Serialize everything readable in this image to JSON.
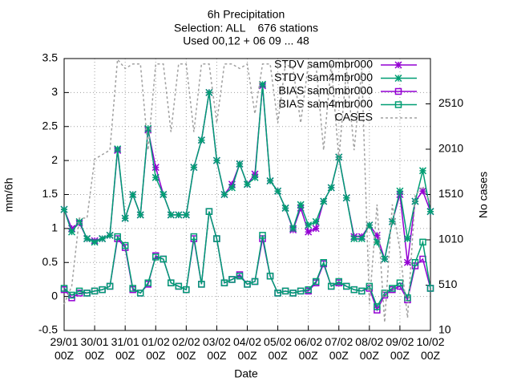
{
  "chart_data": {
    "type": "line",
    "title": "6h Precipitation",
    "subtitle": [
      "Selection: ALL    676 stations",
      "Used 00,12 + 06 09 ... 48"
    ],
    "xlabel": "Date",
    "ylabel": "mm/6h",
    "y2label": "No cases",
    "x": [
      0,
      0.25,
      0.5,
      0.75,
      1,
      1.25,
      1.5,
      1.75,
      2,
      2.25,
      2.5,
      2.75,
      3,
      3.25,
      3.5,
      3.75,
      4,
      4.25,
      4.5,
      4.75,
      5,
      5.25,
      5.5,
      5.75,
      6,
      6.25,
      6.5,
      6.75,
      7,
      7.25,
      7.5,
      7.75,
      8,
      8.25,
      8.5,
      8.75,
      9,
      9.25,
      9.5,
      9.75,
      10,
      10.25,
      10.5,
      10.75,
      11,
      11.25,
      11.5,
      11.75,
      12
    ],
    "xlim": [
      0,
      12
    ],
    "xticks": [
      {
        "value": 0,
        "label": "29/01\n00Z"
      },
      {
        "value": 1,
        "label": "30/01\n00Z"
      },
      {
        "value": 2,
        "label": "31/01\n00Z"
      },
      {
        "value": 3,
        "label": "01/02\n00Z"
      },
      {
        "value": 4,
        "label": "02/02\n00Z"
      },
      {
        "value": 5,
        "label": "03/02\n00Z"
      },
      {
        "value": 6,
        "label": "04/02\n00Z"
      },
      {
        "value": 7,
        "label": "05/02\n00Z"
      },
      {
        "value": 8,
        "label": "06/02\n00Z"
      },
      {
        "value": 9,
        "label": "07/02\n00Z"
      },
      {
        "value": 10,
        "label": "08/02\n00Z"
      },
      {
        "value": 11,
        "label": "09/02\n00Z"
      },
      {
        "value": 12,
        "label": "10/02\n00Z"
      }
    ],
    "ylim": [
      -0.5,
      3.5
    ],
    "yticks": [
      -0.5,
      0,
      0.5,
      1,
      1.5,
      2,
      2.5,
      3,
      3.5
    ],
    "y2lim": [
      10,
      3010
    ],
    "y2ticks": [
      10,
      510,
      1010,
      1510,
      2010,
      2510
    ],
    "grid": true,
    "legend": "top-right",
    "series": [
      {
        "name": "STDV sam0mbr000",
        "color": "#9400d3",
        "marker": "star",
        "values": [
          1.28,
          1.0,
          1.08,
          0.85,
          0.82,
          0.85,
          0.9,
          2.15,
          1.15,
          1.5,
          1.2,
          2.45,
          1.9,
          1.5,
          1.2,
          1.2,
          1.2,
          1.9,
          2.3,
          3.0,
          2.0,
          1.5,
          1.65,
          1.95,
          1.65,
          1.8,
          3.1,
          1.7,
          1.55,
          1.3,
          0.98,
          1.3,
          0.95,
          1.0,
          1.4,
          1.6,
          2.05,
          1.45,
          0.88,
          0.88,
          1.05,
          0.9,
          0.55,
          1.1,
          1.5,
          0.5,
          1.4,
          1.55,
          1.25
        ]
      },
      {
        "name": "STDV sam4mbr000",
        "color": "#009e73",
        "marker": "star",
        "values": [
          1.28,
          0.95,
          1.1,
          0.85,
          0.8,
          0.85,
          0.9,
          2.17,
          1.15,
          1.5,
          1.2,
          2.47,
          1.75,
          1.5,
          1.2,
          1.2,
          1.2,
          1.9,
          2.3,
          3.0,
          2.0,
          1.5,
          1.6,
          1.95,
          1.65,
          1.75,
          3.12,
          1.7,
          1.55,
          1.3,
          1.0,
          1.35,
          1.05,
          1.1,
          1.4,
          1.6,
          2.05,
          1.45,
          0.85,
          0.85,
          1.05,
          0.8,
          0.55,
          1.1,
          1.55,
          0.85,
          1.4,
          1.85,
          1.25
        ]
      },
      {
        "name": "BIAS sam0mbr000",
        "color": "#9400d3",
        "marker": "square",
        "values": [
          0.1,
          -0.02,
          0.05,
          0.05,
          0.08,
          0.1,
          0.15,
          0.85,
          0.72,
          0.1,
          0.05,
          0.18,
          0.6,
          0.55,
          0.2,
          0.15,
          0.1,
          0.85,
          0.18,
          1.25,
          0.85,
          0.2,
          0.25,
          0.32,
          0.18,
          0.22,
          0.85,
          0.3,
          0.05,
          0.08,
          0.05,
          0.08,
          0.08,
          0.2,
          0.48,
          0.15,
          0.2,
          0.15,
          0.1,
          0.08,
          0.12,
          -0.2,
          0.02,
          0.1,
          0.15,
          -0.05,
          0.45,
          0.55,
          0.12
        ]
      },
      {
        "name": "BIAS sam4mbr000",
        "color": "#009e73",
        "marker": "square",
        "values": [
          0.12,
          0.02,
          0.08,
          0.05,
          0.08,
          0.1,
          0.15,
          0.88,
          0.75,
          0.12,
          0.05,
          0.2,
          0.58,
          0.55,
          0.2,
          0.15,
          0.1,
          0.88,
          0.18,
          1.25,
          0.85,
          0.2,
          0.25,
          0.3,
          0.18,
          0.22,
          0.9,
          0.3,
          0.05,
          0.08,
          0.05,
          0.08,
          0.1,
          0.22,
          0.5,
          0.15,
          0.22,
          0.15,
          0.1,
          0.08,
          0.15,
          -0.15,
          0.05,
          0.12,
          0.2,
          -0.02,
          0.5,
          0.8,
          0.12
        ]
      },
      {
        "name": "CASES",
        "color": "#a0a0a0",
        "marker": null,
        "axis": "y2",
        "values": [
          300,
          500,
          1250,
          1250,
          1900,
          1950,
          2000,
          3000,
          2900,
          2950,
          2950,
          2000,
          2950,
          2950,
          2200,
          2950,
          2950,
          2200,
          2950,
          2950,
          2300,
          2950,
          2950,
          2900,
          2950,
          2400,
          2950,
          2950,
          2300,
          2950,
          2900,
          2300,
          2950,
          2950,
          2000,
          2950,
          1900,
          2900,
          2000,
          2900,
          300,
          1400,
          100,
          1400,
          900,
          150,
          1500,
          1600,
          1400
        ]
      }
    ]
  }
}
